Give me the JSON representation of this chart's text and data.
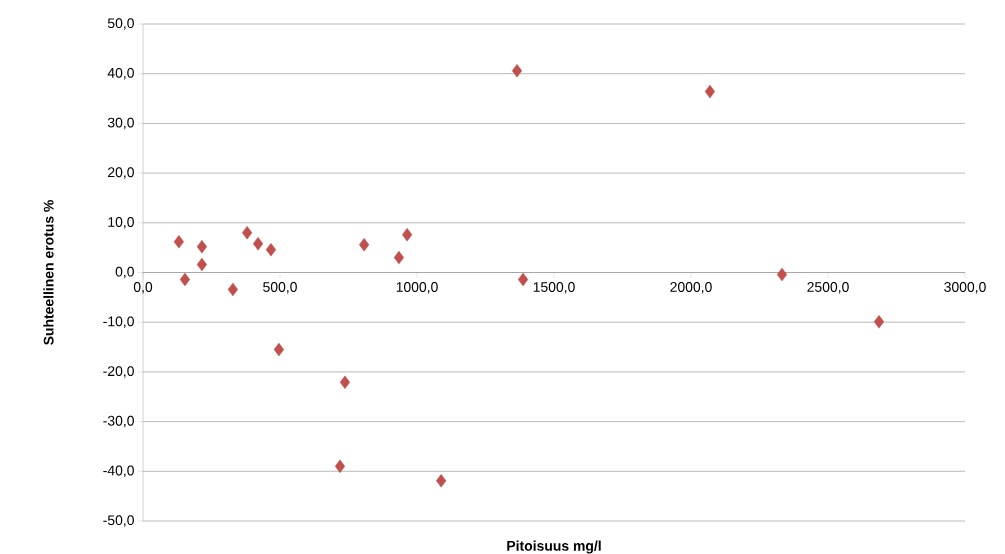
{
  "chart_data": {
    "type": "scatter",
    "xlabel": "Pitoisuus mg/l",
    "ylabel": "Suhteellinen erotus %",
    "x": [
      131,
      153,
      215,
      215,
      328,
      380,
      420,
      467,
      496,
      737,
      719,
      807,
      934,
      964,
      1088,
      1365,
      1387,
      2069,
      2332,
      2686
    ],
    "series": [
      {
        "color": "#c0504d",
        "values": [
          6.2,
          -1.4,
          5.2,
          1.6,
          -3.4,
          8.0,
          5.8,
          4.6,
          -15.5,
          -22.1,
          -39.0,
          5.6,
          3.0,
          7.6,
          -41.9,
          40.6,
          -1.4,
          36.4,
          -0.4,
          -9.9
        ]
      }
    ],
    "xlim": [
      0,
      3000
    ],
    "ylim": [
      -50,
      50
    ],
    "xticks": [
      {
        "value": 0,
        "label": "0,0"
      },
      {
        "value": 500,
        "label": "500,0"
      },
      {
        "value": 1000,
        "label": "1000,0"
      },
      {
        "value": 1500,
        "label": "1500,0"
      },
      {
        "value": 2000,
        "label": "2000,0"
      },
      {
        "value": 2500,
        "label": "2500,0"
      },
      {
        "value": 3000,
        "label": "3000,0"
      }
    ],
    "yticks": [
      {
        "value": -50,
        "label": "-50,0"
      },
      {
        "value": -40,
        "label": "-40,0"
      },
      {
        "value": -30,
        "label": "-30,0"
      },
      {
        "value": -20,
        "label": "-20,0"
      },
      {
        "value": -10,
        "label": "-10,0"
      },
      {
        "value": 0,
        "label": "0,0"
      },
      {
        "value": 10,
        "label": "10,0"
      },
      {
        "value": 20,
        "label": "20,0"
      },
      {
        "value": 30,
        "label": "30,0"
      },
      {
        "value": 40,
        "label": "40,0"
      },
      {
        "value": 50,
        "label": "50,0"
      }
    ],
    "grid": "y",
    "marker": "diamond"
  }
}
